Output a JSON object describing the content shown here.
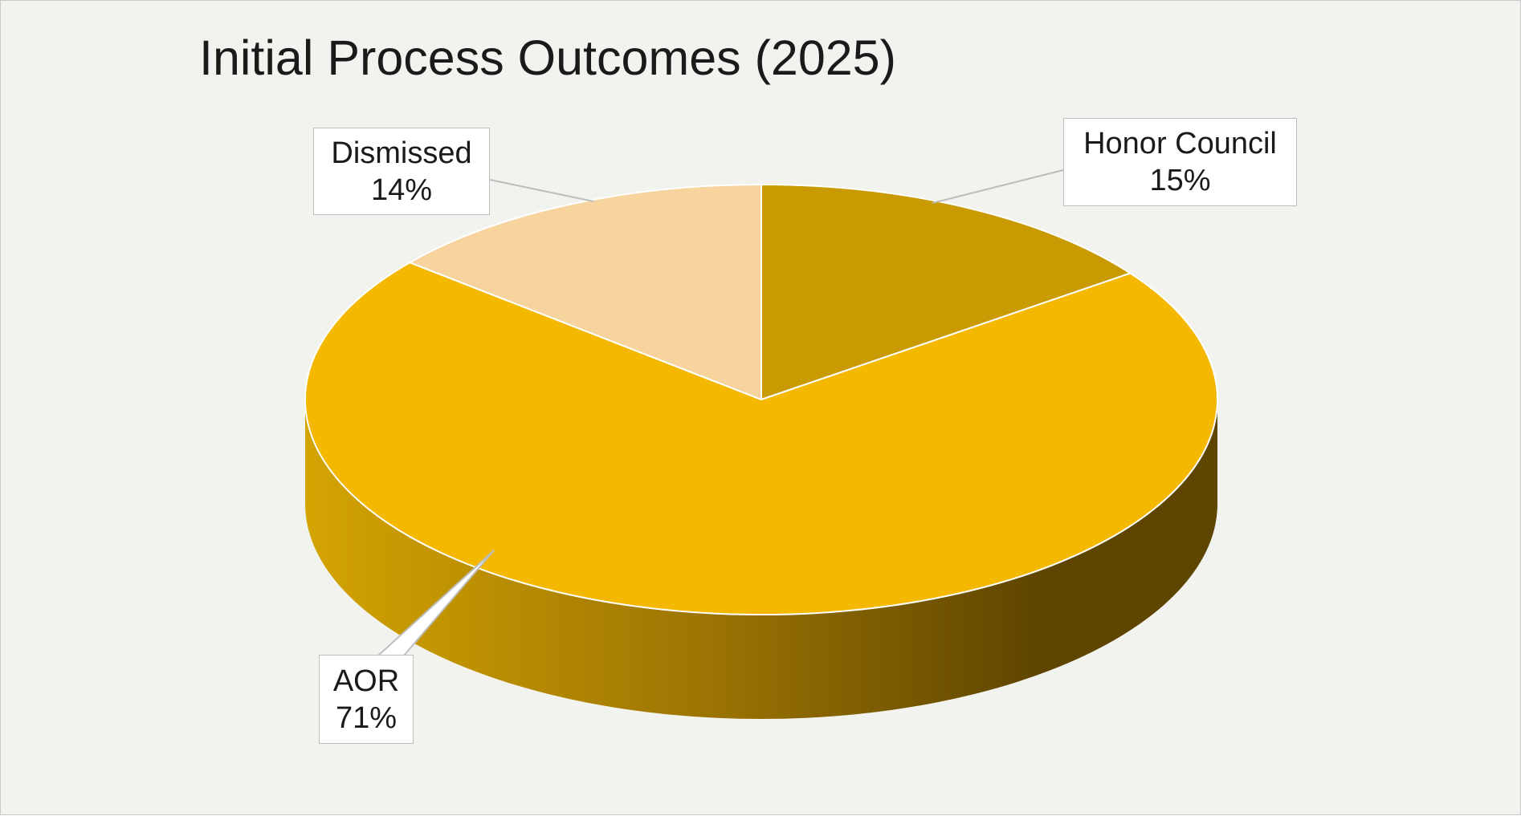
{
  "chart_data": {
    "type": "pie",
    "title": "Initial Process Outcomes (2025)",
    "style": "3d",
    "slices": [
      {
        "label": "Honor Council",
        "value": 15,
        "value_label": "15%",
        "color": "#c99a02"
      },
      {
        "label": "AOR",
        "value": 71,
        "value_label": "71%",
        "color": "#f5b800"
      },
      {
        "label": "Dismissed",
        "value": 14,
        "value_label": "14%",
        "color": "#f7d49d"
      }
    ],
    "legend": "none",
    "data_labels": "callouts"
  },
  "colors": {
    "background": "#f2f2ee",
    "side_light": "#d4a402",
    "side_dark": "#5f4600"
  }
}
